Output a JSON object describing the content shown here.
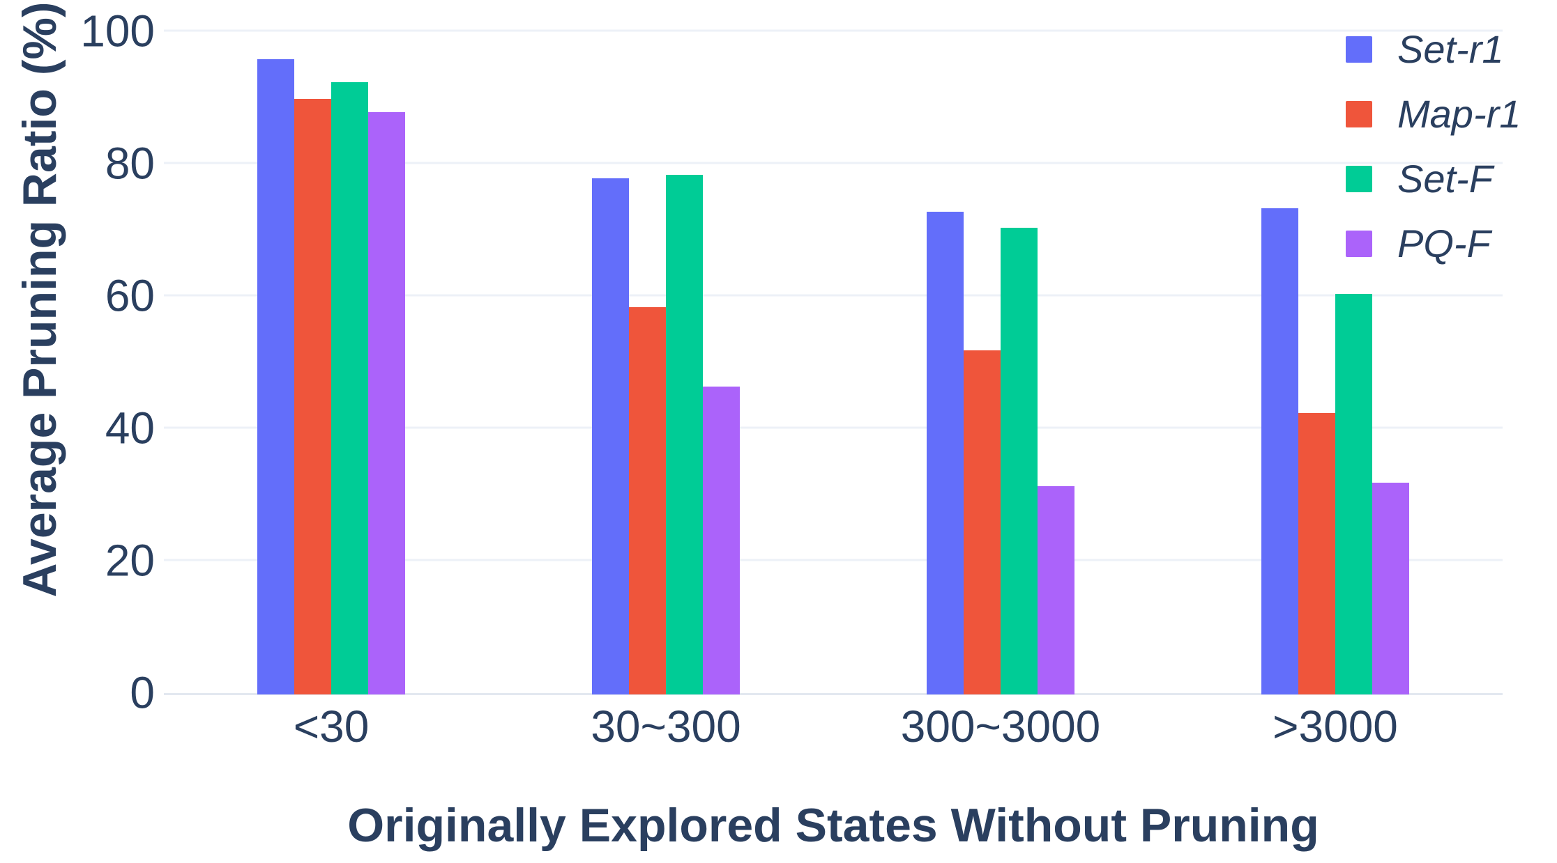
{
  "chart_data": {
    "type": "bar",
    "title": "",
    "xlabel": "Originally Explored States Without Pruning",
    "ylabel": "Average Pruning Ratio (%)",
    "categories": [
      "<30",
      "30~300",
      "300~3000",
      ">3000"
    ],
    "series": [
      {
        "name": "Set-r1",
        "color": "#636EFA",
        "values": [
          96,
          78,
          73,
          73.5
        ]
      },
      {
        "name": "Map-r1",
        "color": "#EF553B",
        "values": [
          90,
          58.5,
          52,
          42.5
        ]
      },
      {
        "name": "Set-F",
        "color": "#00CC96",
        "values": [
          92.5,
          78.5,
          70.5,
          60.5
        ]
      },
      {
        "name": "PQ-F",
        "color": "#AB63FA",
        "values": [
          88,
          46.5,
          31.5,
          32
        ]
      }
    ],
    "yticks": [
      0,
      20,
      40,
      60,
      80,
      100
    ],
    "ylim": [
      0,
      100
    ],
    "grid": true,
    "legend_position": "top-right",
    "colors": {
      "text": "#2a3f5f",
      "grid": "#edf1f7",
      "zeroline": "#e3e8f0",
      "background": "#ffffff"
    }
  }
}
